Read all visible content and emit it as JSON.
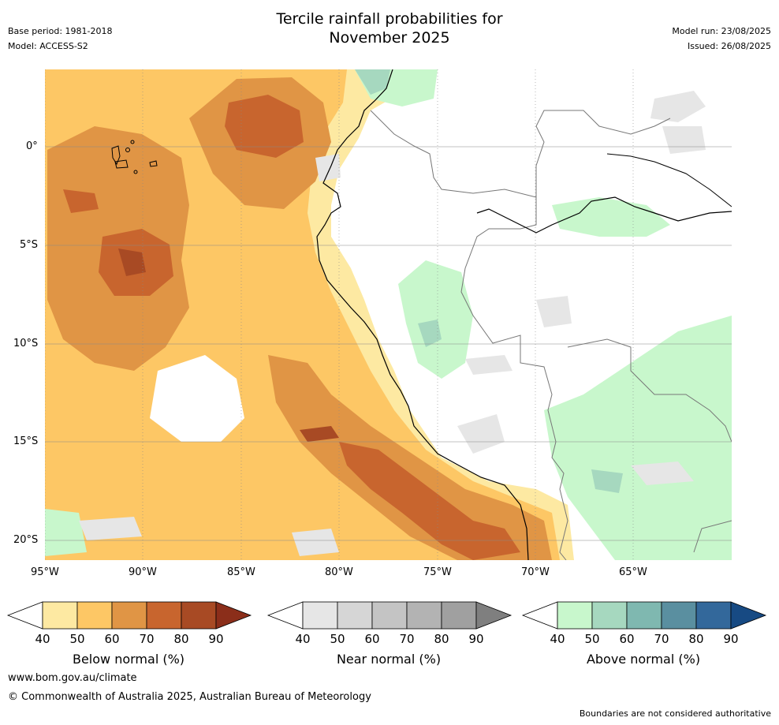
{
  "title": {
    "line1": "Tercile rainfall probabilities for",
    "line2": "November 2025"
  },
  "meta": {
    "base_period": "Base period: 1981-2018",
    "model": "Model: ACCESS-S2",
    "model_run": "Model run: 23/08/2025",
    "issued": "Issued: 26/08/2025"
  },
  "map": {
    "lon_ticks": [
      "95°W",
      "90°W",
      "85°W",
      "80°W",
      "75°W",
      "70°W",
      "65°W"
    ],
    "lat_ticks": [
      "0°",
      "5°S",
      "10°S",
      "15°S",
      "20°S"
    ]
  },
  "colorbars": [
    {
      "label": "Below normal (%)",
      "ticks": [
        "40",
        "50",
        "60",
        "70",
        "80",
        "90"
      ],
      "colors": [
        "#fde9a2",
        "#fdc765",
        "#e09545",
        "#c8652e",
        "#a84a24",
        "#8b2e1a"
      ]
    },
    {
      "label": "Near normal (%)",
      "ticks": [
        "40",
        "50",
        "60",
        "70",
        "80",
        "90"
      ],
      "colors": [
        "#e6e6e6",
        "#d6d6d6",
        "#c4c4c4",
        "#b3b3b3",
        "#a0a0a0",
        "#7f7f7f"
      ]
    },
    {
      "label": "Above normal (%)",
      "ticks": [
        "40",
        "50",
        "60",
        "70",
        "80",
        "90"
      ],
      "colors": [
        "#c8f7cc",
        "#a6d8bf",
        "#7fb8b0",
        "#5a8fa0",
        "#33689b",
        "#174a83"
      ]
    }
  ],
  "footer": {
    "website": "www.bom.gov.au/climate",
    "copyright": "© Commonwealth of Australia 2025, Australian Bureau of Meteorology",
    "disclaimer": "Boundaries are not considered authoritative"
  }
}
